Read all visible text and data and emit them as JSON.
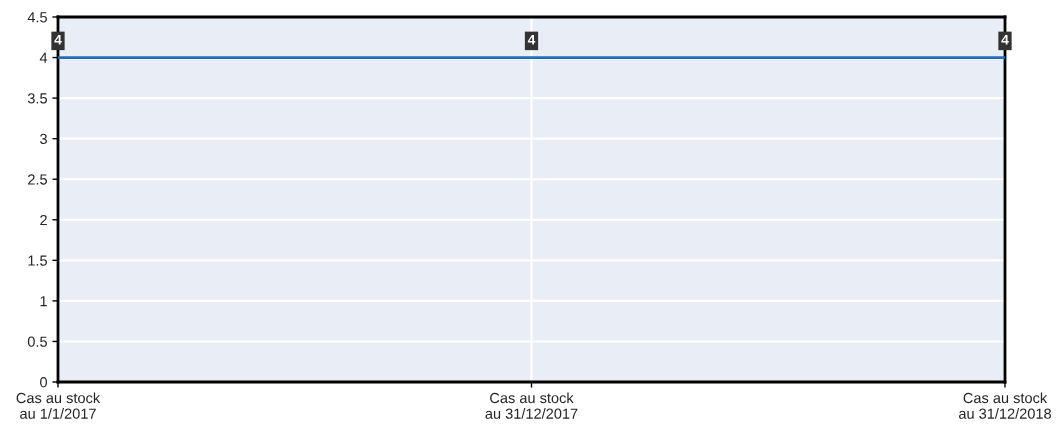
{
  "chart_data": {
    "type": "line",
    "categories": [
      "Cas au stock\nau 1/1/2017",
      "Cas au stock\nau 31/12/2017",
      "Cas au stock\nau 31/12/2018"
    ],
    "series": [
      {
        "color": "#1f6fb6",
        "values": [
          4,
          4,
          4
        ]
      }
    ],
    "ylim": [
      0,
      4.5
    ],
    "yticks": [
      0,
      0.5,
      1,
      1.5,
      2,
      2.5,
      3,
      3.5,
      4,
      4.5
    ],
    "grid": true,
    "data_labels": true,
    "line_style": "solid"
  }
}
